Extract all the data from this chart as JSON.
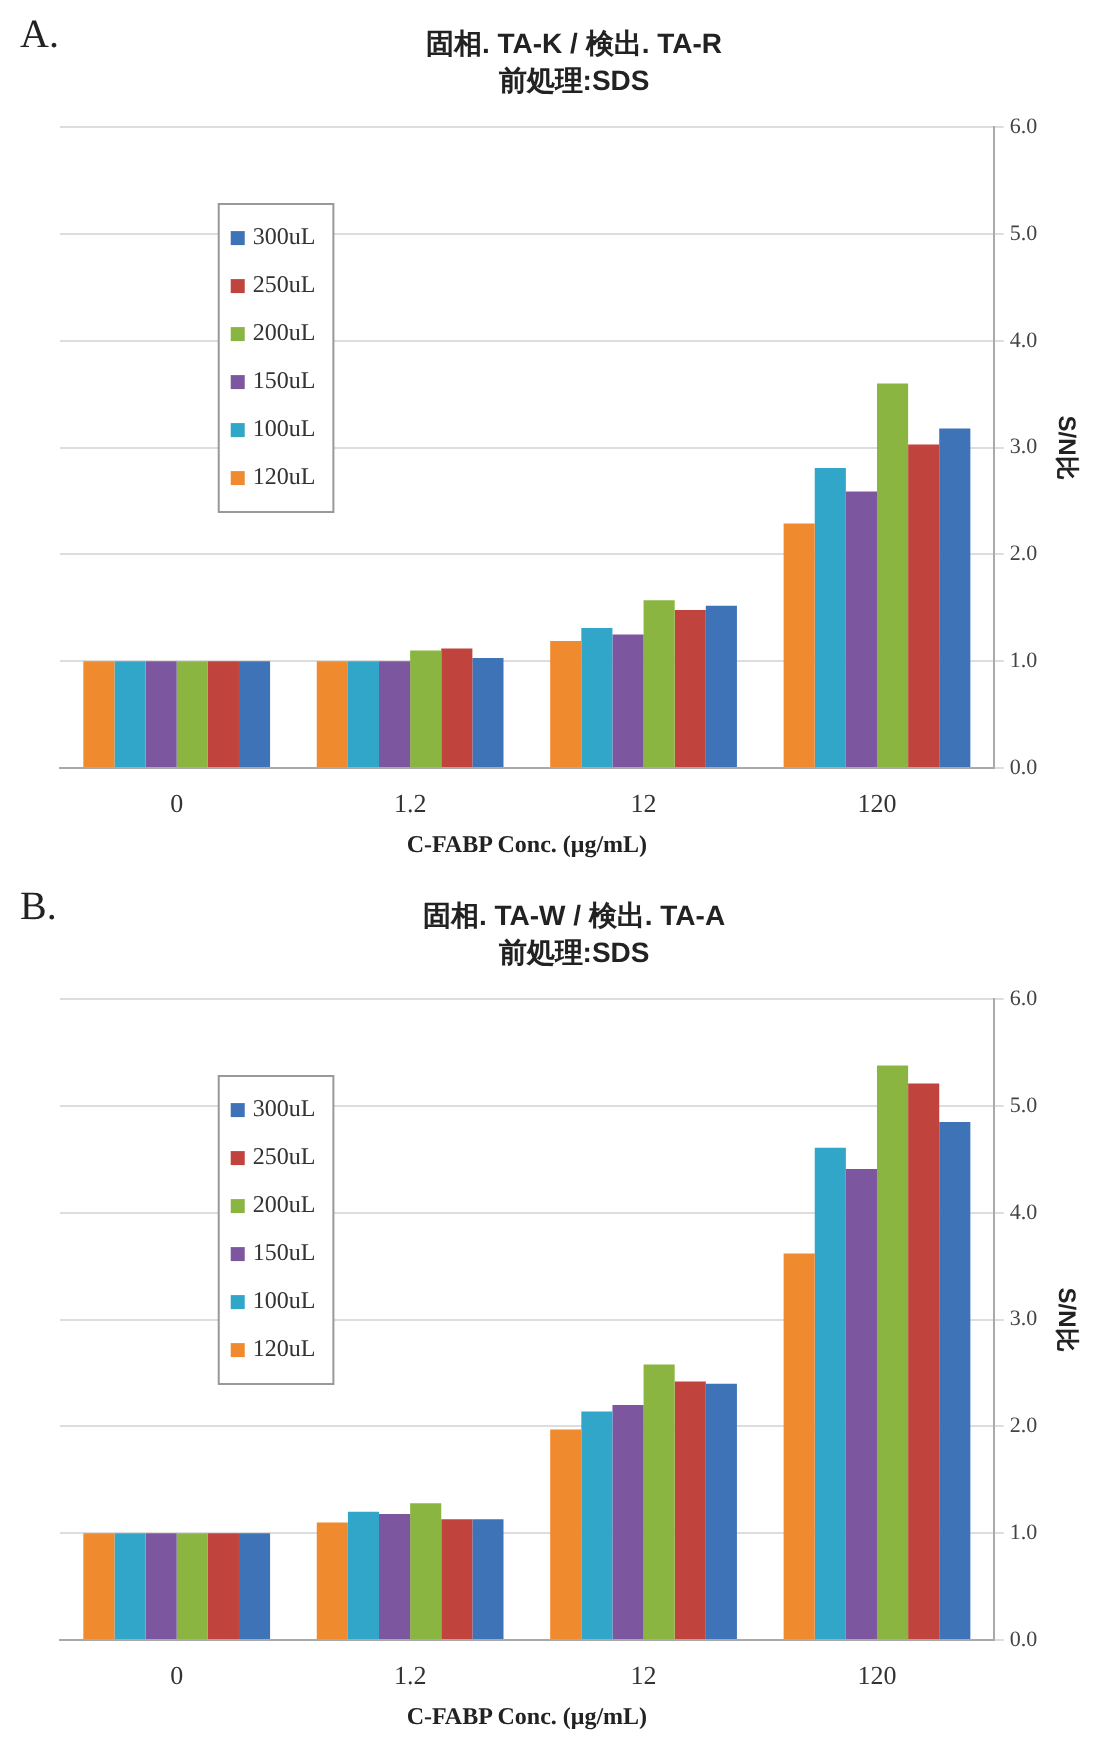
{
  "chart_data": [
    {
      "type": "bar",
      "title": "固相. TA-K / 検出. TA-R",
      "subtitle": "前処理:SDS",
      "xlabel": "C-FABP Conc. (μg/mL)",
      "ylabel": "S/N比",
      "annotations": [
        "A."
      ],
      "categories": [
        "0",
        "1.2",
        "12",
        "120"
      ],
      "series": [
        {
          "name": "120uL",
          "color": "#f08a2e",
          "values": [
            1.0,
            1.0,
            1.19,
            2.29
          ]
        },
        {
          "name": "100uL",
          "color": "#32a6c8",
          "values": [
            1.0,
            1.0,
            1.31,
            2.81
          ]
        },
        {
          "name": "150uL",
          "color": "#7d56a0",
          "values": [
            1.0,
            1.0,
            1.25,
            2.59
          ]
        },
        {
          "name": "200uL",
          "color": "#8ab540",
          "values": [
            1.0,
            1.1,
            1.57,
            3.6
          ]
        },
        {
          "name": "250uL",
          "color": "#c0433e",
          "values": [
            1.0,
            1.12,
            1.48,
            3.03
          ]
        },
        {
          "name": "300uL",
          "color": "#3f73b8",
          "values": [
            1.0,
            1.03,
            1.52,
            3.18
          ]
        }
      ],
      "ylim": [
        0,
        6
      ],
      "yticks": [
        {
          "value": 0,
          "label": "0.0"
        },
        {
          "value": 1,
          "label": "1.0"
        },
        {
          "value": 2,
          "label": "2.0"
        },
        {
          "value": 3,
          "label": "3.0"
        },
        {
          "value": 4,
          "label": "4.0"
        },
        {
          "value": 5,
          "label": "5.0"
        },
        {
          "value": 6,
          "label": "6.0"
        }
      ],
      "grid": "y",
      "legend": "top left"
    },
    {
      "type": "bar",
      "title": "固相. TA-W / 検出. TA-A",
      "subtitle": "前処理:SDS",
      "xlabel": "C-FABP Conc. (μg/mL)",
      "ylabel": "S/N比",
      "annotations": [
        "B."
      ],
      "categories": [
        "0",
        "1.2",
        "12",
        "120"
      ],
      "series": [
        {
          "name": "120uL",
          "color": "#f08a2e",
          "values": [
            1.0,
            1.1,
            1.97,
            3.62
          ]
        },
        {
          "name": "100uL",
          "color": "#32a6c8",
          "values": [
            1.0,
            1.2,
            2.14,
            4.61
          ]
        },
        {
          "name": "150uL",
          "color": "#7d56a0",
          "values": [
            1.0,
            1.18,
            2.2,
            4.41
          ]
        },
        {
          "name": "200uL",
          "color": "#8ab540",
          "values": [
            1.0,
            1.28,
            2.58,
            5.38
          ]
        },
        {
          "name": "250uL",
          "color": "#c0433e",
          "values": [
            1.0,
            1.13,
            2.42,
            5.21
          ]
        },
        {
          "name": "300uL",
          "color": "#3f73b8",
          "values": [
            1.0,
            1.13,
            2.4,
            4.85
          ]
        }
      ],
      "ylim": [
        0,
        6
      ],
      "yticks": [
        {
          "value": 0,
          "label": "0.0"
        },
        {
          "value": 1,
          "label": "1.0"
        },
        {
          "value": 2,
          "label": "2.0"
        },
        {
          "value": 3,
          "label": "3.0"
        },
        {
          "value": 4,
          "label": "4.0"
        },
        {
          "value": 5,
          "label": "5.0"
        },
        {
          "value": 6,
          "label": "6.0"
        }
      ],
      "grid": "y",
      "legend": "top left"
    }
  ]
}
